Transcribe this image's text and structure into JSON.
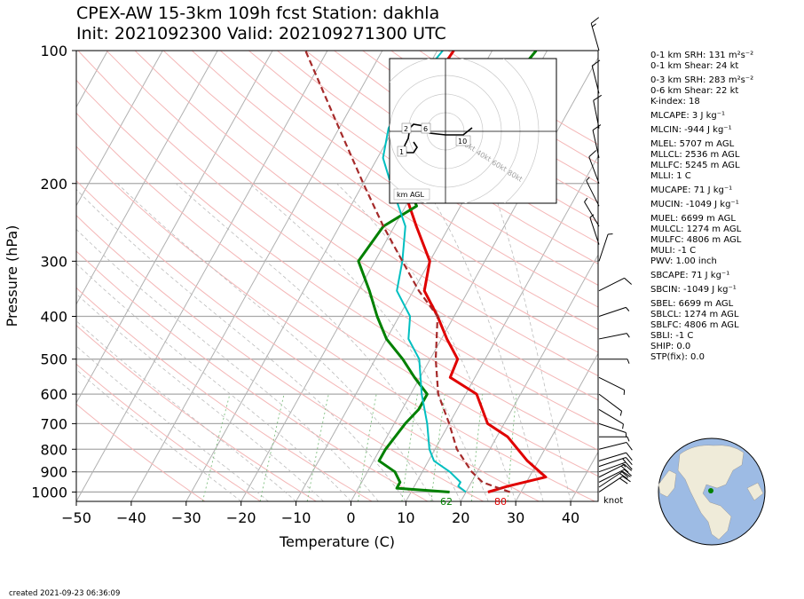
{
  "title": {
    "line1": "CPEX-AW 15-3km  109h fcst  Station: dakhla",
    "line2": "Init: 2021092300  Valid: 202109271300 UTC"
  },
  "footer": {
    "created": "created 2021-09-23 06:36:09"
  },
  "barb_units": "knot",
  "indices": [
    {
      "label": "0-1 km SRH: 131 m²s⁻²"
    },
    {
      "label": "0-1 km Shear: 24 kt"
    },
    {
      "label": "0-3 km SRH: 283 m²s⁻²",
      "gap": true
    },
    {
      "label": "0-6 km Shear: 22 kt"
    },
    {
      "label": "K-index: 18"
    },
    {
      "label": "MLCAPE: 3 J kg⁻¹",
      "gap": true
    },
    {
      "label": "MLCIN: -944 J kg⁻¹",
      "gap": true
    },
    {
      "label": "MLEL: 5707 m AGL",
      "gap": true
    },
    {
      "label": "MLLCL: 2536 m AGL"
    },
    {
      "label": "MLLFC: 5245 m AGL"
    },
    {
      "label": "MLLI: 1 C"
    },
    {
      "label": "MUCAPE: 71 J kg⁻¹",
      "gap": true
    },
    {
      "label": "MUCIN: -1049 J kg⁻¹",
      "gap": true
    },
    {
      "label": "MUEL: 6699 m AGL",
      "gap": true
    },
    {
      "label": "MULCL: 1274 m AGL"
    },
    {
      "label": "MULFC: 4806 m AGL"
    },
    {
      "label": "MULI: -1 C"
    },
    {
      "label": "PWV: 1.00 inch"
    },
    {
      "label": "SBCAPE: 71 J kg⁻¹",
      "gap": true
    },
    {
      "label": "SBCIN: -1049 J kg⁻¹",
      "gap": true
    },
    {
      "label": "SBEL: 6699 m AGL",
      "gap": true
    },
    {
      "label": "SBLCL: 1274 m AGL"
    },
    {
      "label": "SBLFC: 4806 m AGL"
    },
    {
      "label": "SBLI: -1 C"
    },
    {
      "label": "SHIP: 0.0"
    },
    {
      "label": "STP(fix): 0.0"
    }
  ],
  "chart_data": {
    "type": "line",
    "subtype": "skew-t log-p",
    "xlabel": "Temperature (C)",
    "ylabel": "Pressure (hPa)",
    "xlim": [
      -50,
      45
    ],
    "ylim": [
      1050,
      100
    ],
    "x_ticks": [
      -50,
      -40,
      -30,
      -20,
      -10,
      0,
      10,
      20,
      30,
      40
    ],
    "y_ticks": [
      100,
      200,
      300,
      400,
      500,
      600,
      700,
      800,
      900,
      1000
    ],
    "y_scale": "log",
    "grid": true,
    "surface_labels": {
      "dewpoint_F": "62",
      "temperature_F": "80"
    },
    "colors": {
      "temperature": "#e00000",
      "dewpoint": "#008000",
      "wetbulb": "#00bfc0",
      "parcel": "#a52a2a"
    },
    "series": [
      {
        "points": [
          [
            24,
            1000
          ],
          [
            27,
            970
          ],
          [
            33,
            925
          ],
          [
            28,
            850
          ],
          [
            22,
            750
          ],
          [
            17,
            700
          ],
          [
            12,
            600
          ],
          [
            5.5,
            550
          ],
          [
            5,
            500
          ],
          [
            1,
            450
          ],
          [
            -3,
            400
          ],
          [
            -8,
            350
          ],
          [
            -10,
            300
          ],
          [
            -16,
            250
          ],
          [
            -23,
            200
          ],
          [
            -27,
            175
          ],
          [
            -29,
            150
          ],
          [
            -28,
            125
          ],
          [
            -27,
            100
          ]
        ]
      },
      {
        "points": [
          [
            17,
            1000
          ],
          [
            7,
            980
          ],
          [
            7,
            950
          ],
          [
            5,
            900
          ],
          [
            1,
            850
          ],
          [
            1,
            800
          ],
          [
            2,
            700
          ],
          [
            3,
            650
          ],
          [
            3,
            600
          ],
          [
            -1,
            550
          ],
          [
            -5,
            500
          ],
          [
            -10,
            450
          ],
          [
            -14,
            400
          ],
          [
            -18,
            350
          ],
          [
            -23,
            300
          ],
          [
            -22,
            250
          ],
          [
            -18,
            225
          ],
          [
            -22,
            200
          ],
          [
            -19,
            175
          ],
          [
            -17,
            150
          ],
          [
            -14,
            125
          ],
          [
            -12,
            100
          ]
        ]
      },
      {
        "points": [
          [
            20,
            1000
          ],
          [
            18,
            970
          ],
          [
            18,
            950
          ],
          [
            15,
            900
          ],
          [
            11,
            850
          ],
          [
            9,
            800
          ],
          [
            6,
            700
          ],
          [
            2,
            600
          ],
          [
            -2,
            500
          ],
          [
            -6,
            450
          ],
          [
            -8,
            400
          ],
          [
            -13,
            350
          ],
          [
            -15,
            300
          ],
          [
            -18,
            250
          ],
          [
            -25,
            200
          ],
          [
            -29,
            175
          ],
          [
            -31,
            150
          ],
          [
            -31,
            125
          ],
          [
            -29,
            100
          ]
        ]
      },
      {
        "points": [
          [
            28,
            1000
          ],
          [
            25,
            975
          ],
          [
            22,
            950
          ],
          [
            19,
            900
          ],
          [
            14,
            800
          ],
          [
            10,
            700
          ],
          [
            5,
            600
          ],
          [
            1,
            500
          ],
          [
            -3,
            400
          ],
          [
            -9,
            350
          ],
          [
            -15,
            300
          ],
          [
            -22,
            250
          ],
          [
            -30,
            200
          ],
          [
            -40,
            150
          ],
          [
            -54,
            100
          ]
        ]
      }
    ],
    "hodograph": {
      "label": "km AGL",
      "ring_labels": [
        "20kt",
        "40kt",
        "60kt",
        "80kt"
      ],
      "height_labels": [
        "1",
        "2",
        "6",
        "10"
      ],
      "trace": [
        [
          -18,
          -6
        ],
        [
          -16,
          -9
        ],
        [
          -18,
          -12
        ],
        [
          -22,
          -12
        ],
        [
          -23,
          -8
        ],
        [
          -21,
          -4
        ],
        [
          -20,
          2
        ],
        [
          -18,
          4
        ],
        [
          -12,
          3
        ],
        [
          -9,
          -1
        ],
        [
          0,
          -2
        ],
        [
          10,
          -2
        ],
        [
          15,
          2
        ]
      ]
    },
    "wind_barbs_knots": [
      {
        "p": 1000,
        "u": -15,
        "v": -10
      },
      {
        "p": 975,
        "u": -18,
        "v": -12
      },
      {
        "p": 950,
        "u": -20,
        "v": -10
      },
      {
        "p": 925,
        "u": -16,
        "v": -8
      },
      {
        "p": 900,
        "u": -14,
        "v": -5
      },
      {
        "p": 875,
        "u": -12,
        "v": -4
      },
      {
        "p": 850,
        "u": -10,
        "v": -3
      },
      {
        "p": 800,
        "u": -8,
        "v": -2
      },
      {
        "p": 750,
        "u": -7,
        "v": 0
      },
      {
        "p": 700,
        "u": -6,
        "v": 2
      },
      {
        "p": 650,
        "u": -5,
        "v": 3
      },
      {
        "p": 600,
        "u": -4,
        "v": 3
      },
      {
        "p": 550,
        "u": -4,
        "v": 2
      },
      {
        "p": 500,
        "u": -5,
        "v": 0
      },
      {
        "p": 450,
        "u": -5,
        "v": -1
      },
      {
        "p": 400,
        "u": -6,
        "v": -2
      },
      {
        "p": 350,
        "u": -8,
        "v": -4
      },
      {
        "p": 300,
        "u": -2,
        "v": -6
      },
      {
        "p": 275,
        "u": 2,
        "v": -6
      },
      {
        "p": 250,
        "u": 3,
        "v": -5
      },
      {
        "p": 225,
        "u": 3,
        "v": -6
      },
      {
        "p": 200,
        "u": 3,
        "v": -8
      },
      {
        "p": 175,
        "u": 2,
        "v": -9
      },
      {
        "p": 150,
        "u": 2,
        "v": -10
      },
      {
        "p": 125,
        "u": 3,
        "v": -12
      },
      {
        "p": 100,
        "u": 4,
        "v": -14
      }
    ]
  }
}
